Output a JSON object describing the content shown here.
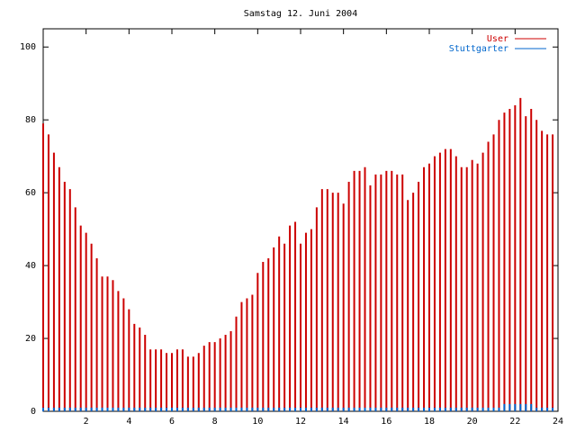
{
  "chart_data": {
    "type": "impulse",
    "title": "Samstag 12. Juni 2004",
    "x": [
      0,
      0.25,
      0.5,
      0.75,
      1,
      1.25,
      1.5,
      1.75,
      2,
      2.25,
      2.5,
      2.75,
      3,
      3.25,
      3.5,
      3.75,
      4,
      4.25,
      4.5,
      4.75,
      5,
      5.25,
      5.5,
      5.75,
      6,
      6.25,
      6.5,
      6.75,
      7,
      7.25,
      7.5,
      7.75,
      8,
      8.25,
      8.5,
      8.75,
      9,
      9.25,
      9.5,
      9.75,
      10,
      10.25,
      10.5,
      10.75,
      11,
      11.25,
      11.5,
      11.75,
      12,
      12.25,
      12.5,
      12.75,
      13,
      13.25,
      13.5,
      13.75,
      14,
      14.25,
      14.5,
      14.75,
      15,
      15.25,
      15.5,
      15.75,
      16,
      16.25,
      16.5,
      16.75,
      17,
      17.25,
      17.5,
      17.75,
      18,
      18.25,
      18.5,
      18.75,
      19,
      19.25,
      19.5,
      19.75,
      20,
      20.25,
      20.5,
      20.75,
      21,
      21.25,
      21.5,
      21.75,
      22,
      22.25,
      22.5,
      22.75,
      23,
      23.25,
      23.5,
      23.75
    ],
    "series": [
      {
        "name": "User",
        "color": "#cc0000",
        "values": [
          79,
          76,
          71,
          67,
          63,
          61,
          56,
          51,
          49,
          46,
          42,
          37,
          37,
          36,
          33,
          31,
          28,
          24,
          23,
          21,
          17,
          17,
          17,
          16,
          16,
          17,
          17,
          15,
          15,
          16,
          18,
          19,
          19,
          20,
          21,
          22,
          26,
          30,
          31,
          32,
          38,
          41,
          42,
          45,
          48,
          46,
          51,
          52,
          46,
          49,
          50,
          56,
          61,
          61,
          60,
          60,
          57,
          63,
          66,
          66,
          67,
          62,
          65,
          65,
          66,
          66,
          65,
          65,
          58,
          60,
          63,
          67,
          68,
          70,
          71,
          72,
          72,
          70,
          67,
          67,
          69,
          68,
          71,
          74,
          76,
          80,
          82,
          83,
          84,
          86,
          81,
          83,
          80,
          77,
          76,
          76
        ]
      },
      {
        "name": "Stuttgarter",
        "color": "#0066cc",
        "values": [
          1,
          1,
          1,
          1,
          1,
          1,
          1,
          1,
          1,
          1,
          1,
          1,
          1,
          1,
          1,
          1,
          1,
          1,
          1,
          1,
          1,
          1,
          1,
          1,
          1,
          1,
          1,
          1,
          1,
          1,
          1,
          1,
          1,
          1,
          1,
          1,
          1,
          1,
          1,
          1,
          1,
          1,
          1,
          1,
          1,
          1,
          1,
          1,
          1,
          1,
          1,
          1,
          1,
          1,
          1,
          1,
          1,
          1,
          1,
          1,
          1,
          1,
          1,
          1,
          1,
          1,
          1,
          1,
          1,
          1,
          1,
          1,
          1,
          1,
          1,
          1,
          1,
          1,
          1,
          1,
          1,
          1,
          1,
          1,
          1,
          1,
          2,
          2,
          2,
          2,
          2,
          2,
          1,
          1,
          1,
          1
        ]
      }
    ],
    "xlim": [
      0,
      24
    ],
    "xticks": [
      2,
      4,
      6,
      8,
      10,
      12,
      14,
      16,
      18,
      20,
      22,
      24
    ],
    "ylim": [
      0,
      105
    ],
    "yticks": [
      0,
      20,
      40,
      60,
      80,
      100
    ]
  }
}
